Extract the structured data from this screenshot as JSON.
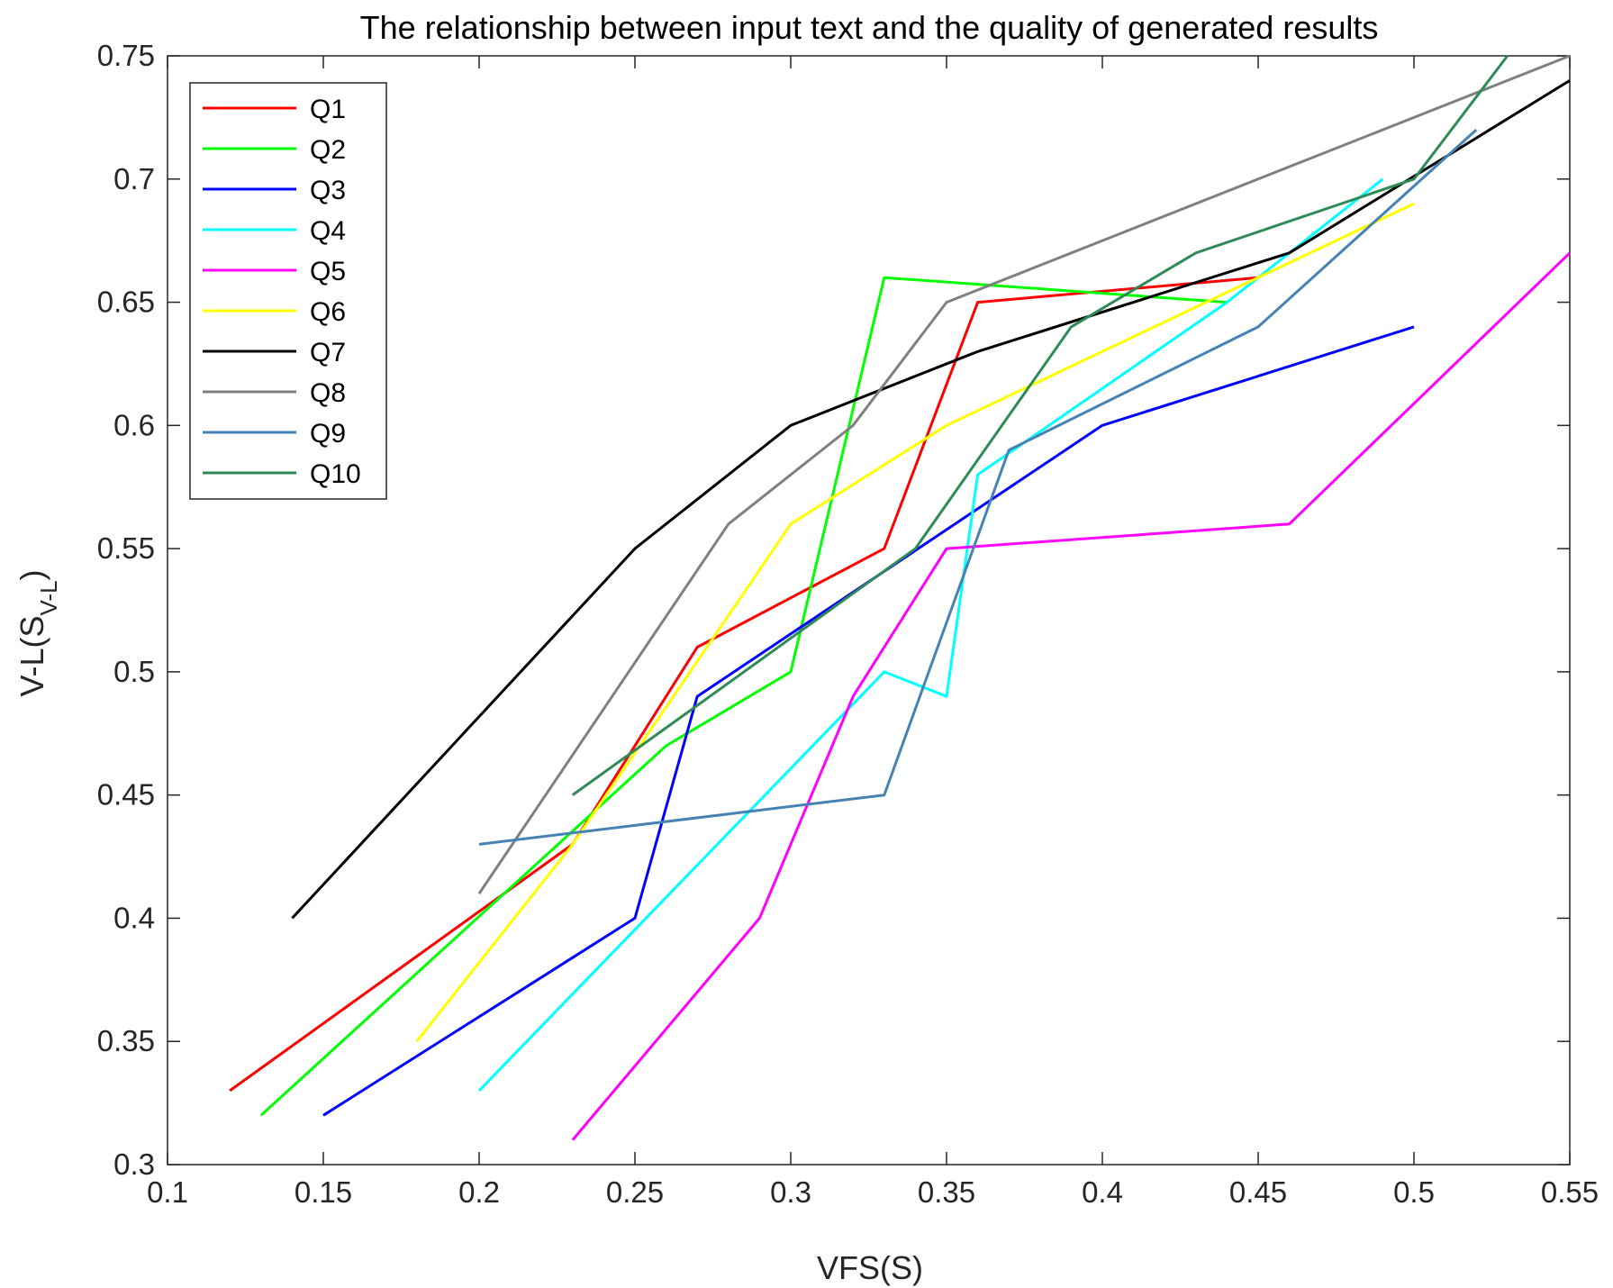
{
  "chart_data": {
    "type": "line",
    "title": "The relationship between input text and the quality of generated results",
    "xlabel": "VFS(S)",
    "ylabel": {
      "main": "V-L(S",
      "subscript": "V-L",
      "close": ")"
    },
    "xlim": [
      0.1,
      0.55
    ],
    "ylim": [
      0.3,
      0.75
    ],
    "xticks": [
      0.1,
      0.15,
      0.2,
      0.25,
      0.3,
      0.35,
      0.4,
      0.45,
      0.5,
      0.55
    ],
    "xtick_labels": [
      "0.1",
      "0.15",
      "0.2",
      "0.25",
      "0.3",
      "0.35",
      "0.4",
      "0.45",
      "0.5",
      "0.55"
    ],
    "yticks": [
      0.3,
      0.35,
      0.4,
      0.45,
      0.5,
      0.55,
      0.6,
      0.65,
      0.7,
      0.75
    ],
    "ytick_labels": [
      "0.3",
      "0.35",
      "0.4",
      "0.45",
      "0.5",
      "0.55",
      "0.6",
      "0.65",
      "0.7",
      "0.75"
    ],
    "grid": false,
    "legend_position": "top-left",
    "series": [
      {
        "name": "Q1",
        "color": "#ff0000",
        "points": [
          [
            0.12,
            0.33
          ],
          [
            0.23,
            0.43
          ],
          [
            0.27,
            0.51
          ],
          [
            0.33,
            0.55
          ],
          [
            0.36,
            0.65
          ],
          [
            0.45,
            0.66
          ]
        ]
      },
      {
        "name": "Q2",
        "color": "#00ff00",
        "points": [
          [
            0.13,
            0.32
          ],
          [
            0.26,
            0.47
          ],
          [
            0.3,
            0.5
          ],
          [
            0.33,
            0.66
          ],
          [
            0.44,
            0.65
          ]
        ]
      },
      {
        "name": "Q3",
        "color": "#0000ff",
        "points": [
          [
            0.15,
            0.32
          ],
          [
            0.25,
            0.4
          ],
          [
            0.27,
            0.49
          ],
          [
            0.4,
            0.6
          ],
          [
            0.5,
            0.64
          ]
        ]
      },
      {
        "name": "Q4",
        "color": "#00ffff",
        "points": [
          [
            0.2,
            0.33
          ],
          [
            0.33,
            0.5
          ],
          [
            0.35,
            0.49
          ],
          [
            0.36,
            0.58
          ],
          [
            0.44,
            0.65
          ],
          [
            0.49,
            0.7
          ]
        ]
      },
      {
        "name": "Q5",
        "color": "#ff00ff",
        "points": [
          [
            0.23,
            0.31
          ],
          [
            0.29,
            0.4
          ],
          [
            0.32,
            0.49
          ],
          [
            0.35,
            0.55
          ],
          [
            0.46,
            0.56
          ],
          [
            0.55,
            0.67
          ]
        ]
      },
      {
        "name": "Q6",
        "color": "#ffff00",
        "points": [
          [
            0.18,
            0.35
          ],
          [
            0.23,
            0.43
          ],
          [
            0.3,
            0.56
          ],
          [
            0.35,
            0.6
          ],
          [
            0.5,
            0.69
          ]
        ]
      },
      {
        "name": "Q7",
        "color": "#000000",
        "points": [
          [
            0.14,
            0.4
          ],
          [
            0.25,
            0.55
          ],
          [
            0.3,
            0.6
          ],
          [
            0.36,
            0.63
          ],
          [
            0.46,
            0.67
          ],
          [
            0.55,
            0.74
          ]
        ]
      },
      {
        "name": "Q8",
        "color": "#808080",
        "points": [
          [
            0.2,
            0.41
          ],
          [
            0.28,
            0.56
          ],
          [
            0.32,
            0.6
          ],
          [
            0.35,
            0.65
          ],
          [
            0.55,
            0.75
          ]
        ]
      },
      {
        "name": "Q9",
        "color": "#4682b4",
        "points": [
          [
            0.2,
            0.43
          ],
          [
            0.33,
            0.45
          ],
          [
            0.37,
            0.59
          ],
          [
            0.45,
            0.64
          ],
          [
            0.52,
            0.72
          ]
        ]
      },
      {
        "name": "Q10",
        "color": "#2e8b57",
        "points": [
          [
            0.23,
            0.45
          ],
          [
            0.34,
            0.55
          ],
          [
            0.39,
            0.64
          ],
          [
            0.43,
            0.67
          ],
          [
            0.5,
            0.7
          ],
          [
            0.53,
            0.75
          ]
        ]
      }
    ]
  }
}
